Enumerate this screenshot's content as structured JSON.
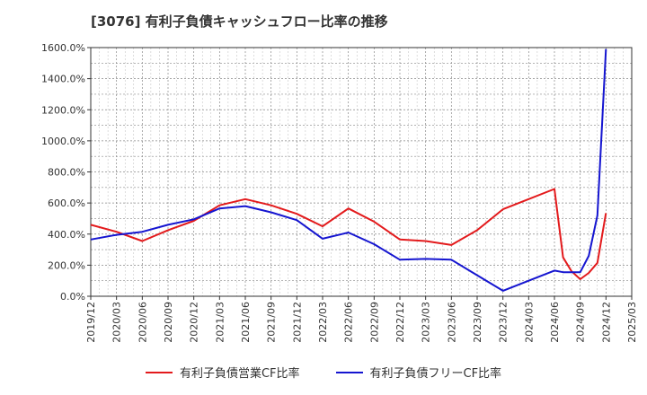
{
  "chart_data": {
    "type": "line",
    "title": "[3076]  有利子負債キャッシュフロー比率の推移",
    "x": [
      "2019/12",
      "2020/03",
      "2020/06",
      "2020/09",
      "2020/12",
      "2021/03",
      "2021/06",
      "2021/09",
      "2021/12",
      "2022/03",
      "2022/06",
      "2022/09",
      "2022/12",
      "2023/03",
      "2023/06",
      "2023/09",
      "2023/12",
      "2024/03",
      "2024/06",
      "2024/09",
      "2024/12",
      "2025/03"
    ],
    "ylim": [
      0,
      1600
    ],
    "yticks": [
      "0.0%",
      "200.0%",
      "400.0%",
      "600.0%",
      "800.0%",
      "1000.0%",
      "1200.0%",
      "1400.0%",
      "1600.0%"
    ],
    "series": [
      {
        "name": "有利子負債営業CF比率",
        "color": "#e31a1c",
        "points": [
          [
            "2019/12",
            460
          ],
          [
            "2020/03",
            415
          ],
          [
            "2020/06",
            355
          ],
          [
            "2020/09",
            425
          ],
          [
            "2020/12",
            485
          ],
          [
            "2021/03",
            585
          ],
          [
            "2021/06",
            625
          ],
          [
            "2021/09",
            585
          ],
          [
            "2021/12",
            530
          ],
          [
            "2022/03",
            450
          ],
          [
            "2022/06",
            565
          ],
          [
            "2022/09",
            480
          ],
          [
            "2022/12",
            365
          ],
          [
            "2023/03",
            355
          ],
          [
            "2023/06",
            330
          ],
          [
            "2023/09",
            425
          ],
          [
            "2023/12",
            560
          ],
          [
            "2024/03",
            625
          ],
          [
            "2024/06",
            690
          ],
          [
            "2024/07",
            250
          ],
          [
            "2024/08",
            160
          ],
          [
            "2024/09",
            110
          ],
          [
            "2024/10",
            150
          ],
          [
            "2024/11",
            215
          ],
          [
            "2024/12",
            535
          ]
        ]
      },
      {
        "name": "有利子負債フリーCF比率",
        "color": "#1515d0",
        "points": [
          [
            "2019/12",
            365
          ],
          [
            "2020/03",
            395
          ],
          [
            "2020/06",
            415
          ],
          [
            "2020/09",
            460
          ],
          [
            "2020/12",
            495
          ],
          [
            "2021/03",
            565
          ],
          [
            "2021/06",
            580
          ],
          [
            "2021/09",
            540
          ],
          [
            "2021/12",
            490
          ],
          [
            "2022/03",
            370
          ],
          [
            "2022/06",
            410
          ],
          [
            "2022/09",
            335
          ],
          [
            "2022/12",
            235
          ],
          [
            "2023/03",
            240
          ],
          [
            "2023/06",
            235
          ],
          [
            "2023/09",
            135
          ],
          [
            "2023/12",
            35
          ],
          [
            "2024/03",
            100
          ],
          [
            "2024/06",
            165
          ],
          [
            "2024/07",
            155
          ],
          [
            "2024/09",
            155
          ],
          [
            "2024/10",
            260
          ],
          [
            "2024/11",
            520
          ],
          [
            "2024/12",
            1590
          ]
        ]
      }
    ],
    "grid": true,
    "legend_position": "bottom"
  }
}
